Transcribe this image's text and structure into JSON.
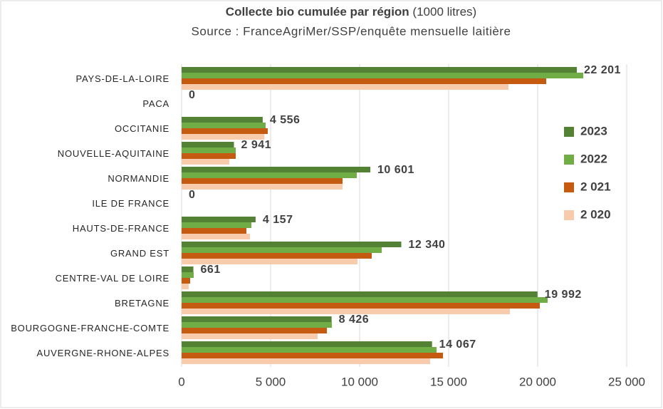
{
  "chart_data": {
    "type": "hbar",
    "title": "Collecte bio cumulée par région",
    "title_note": "(1000 litres)",
    "subtitle": "Source : FranceAgriMer/SSP/enquête mensuelle laitière",
    "categories": [
      "PAYS-DE-LA-LOIRE",
      "PACA",
      "OCCITANIE",
      "NOUVELLE-AQUITAINE",
      "NORMANDIE",
      "ILE DE FRANCE",
      "HAUTS-DE-FRANCE",
      "GRAND EST",
      "CENTRE-VAL DE LOIRE",
      "BRETAGNE",
      "BOURGOGNE-FRANCHE-COMTE",
      "AUVERGNE-RHONE-ALPES"
    ],
    "series": [
      {
        "name": "2023",
        "color": "#548235",
        "values": [
          22201,
          0,
          4556,
          2941,
          10601,
          0,
          4157,
          12340,
          661,
          19992,
          8426,
          14067
        ],
        "value_labels": [
          "22 201",
          "0",
          "4 556",
          "2 941",
          "10 601",
          "0",
          "4 157",
          "12 340",
          "661",
          "19 992",
          "8 426",
          "14 067"
        ]
      },
      {
        "name": "2022",
        "color": "#70ad47",
        "values": [
          22560,
          0,
          4720,
          3040,
          9840,
          0,
          3920,
          11240,
          680,
          20560,
          8440,
          14320
        ]
      },
      {
        "name": "2 021",
        "color": "#c55a11",
        "values": [
          20480,
          0,
          4840,
          3040,
          9040,
          0,
          3640,
          10680,
          480,
          20120,
          8160,
          14680
        ]
      },
      {
        "name": "2 020",
        "color": "#f8cbad",
        "values": [
          18360,
          0,
          4650,
          2680,
          9040,
          0,
          3840,
          9880,
          400,
          18440,
          7640,
          13960
        ]
      }
    ],
    "xlim": [
      0,
      25000
    ],
    "xticks": [
      0,
      {
        "value": 5000,
        "label": "5 000"
      },
      {
        "value": 10000,
        "label": "10 000"
      },
      {
        "value": 15000,
        "label": "15 000"
      },
      {
        "value": 20000,
        "label": "20 000"
      },
      {
        "value": 25000,
        "label": "25 000"
      }
    ],
    "grid": true,
    "legend": "right"
  }
}
